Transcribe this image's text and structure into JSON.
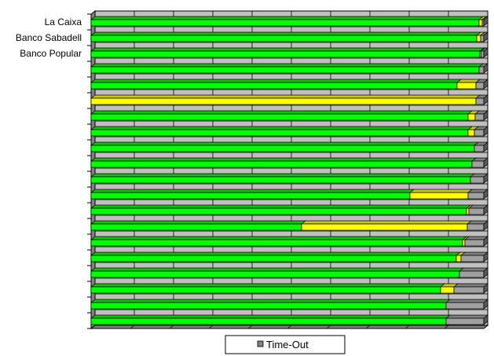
{
  "chart_data": {
    "type": "bar",
    "orientation": "horizontal",
    "stacked": true,
    "percent_stacked": true,
    "three_d": true,
    "grid": true,
    "legend_position": "bottom",
    "categories": [
      "La Caixa",
      "Banco Sabadell",
      "Banco Popular",
      "",
      "",
      "",
      "",
      "",
      "",
      "",
      "",
      "",
      "",
      "",
      "",
      "",
      "",
      "",
      "",
      ""
    ],
    "xlim": [
      0,
      100
    ],
    "series": [
      {
        "color": "#00ff00",
        "values": [
          98.8,
          98.2,
          99.0,
          98.8,
          93.2,
          0,
          96.0,
          96.0,
          97.6,
          97.0,
          96.6,
          81.2,
          95.6,
          53.6,
          94.6,
          93.0,
          93.8,
          89.0,
          90.4,
          90.4
        ]
      },
      {
        "color": "#ffff00",
        "values": [
          0.8,
          1.0,
          0.3,
          0,
          4.8,
          98.0,
          1.8,
          1.6,
          0,
          0,
          0,
          14.8,
          0.6,
          42.2,
          0.6,
          1.2,
          0,
          3.4,
          0,
          0
        ]
      },
      {
        "color": "#a0a0a0",
        "values": [
          0.4,
          0.8,
          0.7,
          1.2,
          2.0,
          2.0,
          2.2,
          2.4,
          2.4,
          3.0,
          3.4,
          4.0,
          3.8,
          4.2,
          4.8,
          5.8,
          6.2,
          7.6,
          9.6,
          9.6
        ]
      },
      {
        "color": "#9a5a9a",
        "values": [
          0,
          0,
          0,
          0,
          0,
          0,
          0,
          0,
          0,
          0,
          0,
          0,
          0,
          0,
          0,
          0,
          0,
          0,
          0,
          0
        ]
      }
    ],
    "legend": [
      {
        "label": "Time-Out",
        "color": "#808080"
      }
    ]
  }
}
